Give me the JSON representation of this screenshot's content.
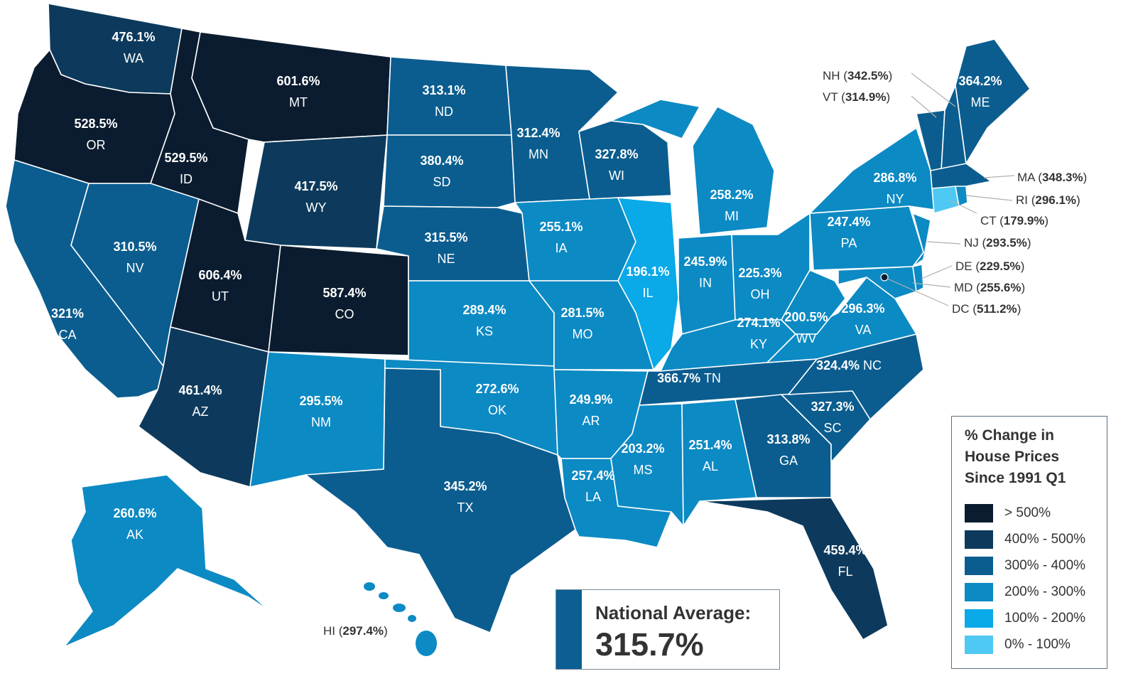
{
  "colors": {
    "gt500": "#0b1c30",
    "r400_500": "#0d3a5c",
    "r300_400": "#0b5d8f",
    "r200_300": "#0c8ac4",
    "r100_200": "#0aa9e8",
    "r0_100": "#4fc8f3"
  },
  "legend": {
    "title": "% Change in House Prices Since 1991 Q1",
    "items": [
      {
        "label": "> 500%",
        "color": "#0b1c30"
      },
      {
        "label": "400% - 500%",
        "color": "#0d3a5c"
      },
      {
        "label": "300% - 400%",
        "color": "#0b5d8f"
      },
      {
        "label": "200% - 300%",
        "color": "#0c8ac4"
      },
      {
        "label": "100% - 200%",
        "color": "#0aa9e8"
      },
      {
        "label": "0% - 100%",
        "color": "#4fc8f3"
      }
    ]
  },
  "national": {
    "label": "National Average:",
    "value": "315.7%"
  },
  "states": {
    "WA": {
      "value": "476.1%",
      "abbr": "WA"
    },
    "OR": {
      "value": "528.5%",
      "abbr": "OR"
    },
    "CA": {
      "value": "321%",
      "abbr": "CA"
    },
    "ID": {
      "value": "529.5%",
      "abbr": "ID"
    },
    "NV": {
      "value": "310.5%",
      "abbr": "NV"
    },
    "MT": {
      "value": "601.6%",
      "abbr": "MT"
    },
    "WY": {
      "value": "417.5%",
      "abbr": "WY"
    },
    "UT": {
      "value": "606.4%",
      "abbr": "UT"
    },
    "CO": {
      "value": "587.4%",
      "abbr": "CO"
    },
    "AZ": {
      "value": "461.4%",
      "abbr": "AZ"
    },
    "NM": {
      "value": "295.5%",
      "abbr": "NM"
    },
    "ND": {
      "value": "313.1%",
      "abbr": "ND"
    },
    "SD": {
      "value": "380.4%",
      "abbr": "SD"
    },
    "NE": {
      "value": "315.5%",
      "abbr": "NE"
    },
    "KS": {
      "value": "289.4%",
      "abbr": "KS"
    },
    "OK": {
      "value": "272.6%",
      "abbr": "OK"
    },
    "TX": {
      "value": "345.2%",
      "abbr": "TX"
    },
    "MN": {
      "value": "312.4%",
      "abbr": "MN"
    },
    "IA": {
      "value": "255.1%",
      "abbr": "IA"
    },
    "MO": {
      "value": "281.5%",
      "abbr": "MO"
    },
    "AR": {
      "value": "249.9%",
      "abbr": "AR"
    },
    "LA": {
      "value": "257.4%",
      "abbr": "LA"
    },
    "WI": {
      "value": "327.8%",
      "abbr": "WI"
    },
    "IL": {
      "value": "196.1%",
      "abbr": "IL"
    },
    "MI": {
      "value": "258.2%",
      "abbr": "MI"
    },
    "IN": {
      "value": "245.9%",
      "abbr": "IN"
    },
    "OH": {
      "value": "225.3%",
      "abbr": "OH"
    },
    "KY": {
      "value": "274.1%",
      "abbr": "KY"
    },
    "TN": {
      "value": "366.7%",
      "abbr": "TN"
    },
    "MS": {
      "value": "203.2%",
      "abbr": "MS"
    },
    "AL": {
      "value": "251.4%",
      "abbr": "AL"
    },
    "GA": {
      "value": "313.8%",
      "abbr": "GA"
    },
    "FL": {
      "value": "459.4%",
      "abbr": "FL"
    },
    "SC": {
      "value": "327.3%",
      "abbr": "SC"
    },
    "NC": {
      "value": "324.4%",
      "abbr": "NC"
    },
    "VA": {
      "value": "296.3%",
      "abbr": "VA"
    },
    "WV": {
      "value": "200.5%",
      "abbr": "WV"
    },
    "PA": {
      "value": "247.4%",
      "abbr": "PA"
    },
    "NY": {
      "value": "286.8%",
      "abbr": "NY"
    },
    "ME": {
      "value": "364.2%",
      "abbr": "ME"
    },
    "AK": {
      "value": "260.6%",
      "abbr": "AK"
    },
    "NH": {
      "value": "342.5%",
      "abbr": "NH"
    },
    "VT": {
      "value": "314.9%",
      "abbr": "VT"
    },
    "MA": {
      "value": "348.3%",
      "abbr": "MA"
    },
    "RI": {
      "value": "296.1%",
      "abbr": "RI"
    },
    "CT": {
      "value": "179.9%",
      "abbr": "CT"
    },
    "NJ": {
      "value": "293.5%",
      "abbr": "NJ"
    },
    "DE": {
      "value": "229.5%",
      "abbr": "DE"
    },
    "MD": {
      "value": "255.6%",
      "abbr": "MD"
    },
    "DC": {
      "value": "511.2%",
      "abbr": "DC"
    },
    "HI": {
      "value": "297.4%",
      "abbr": "HI"
    }
  },
  "punct": {
    "open": " (",
    "close": ")"
  }
}
